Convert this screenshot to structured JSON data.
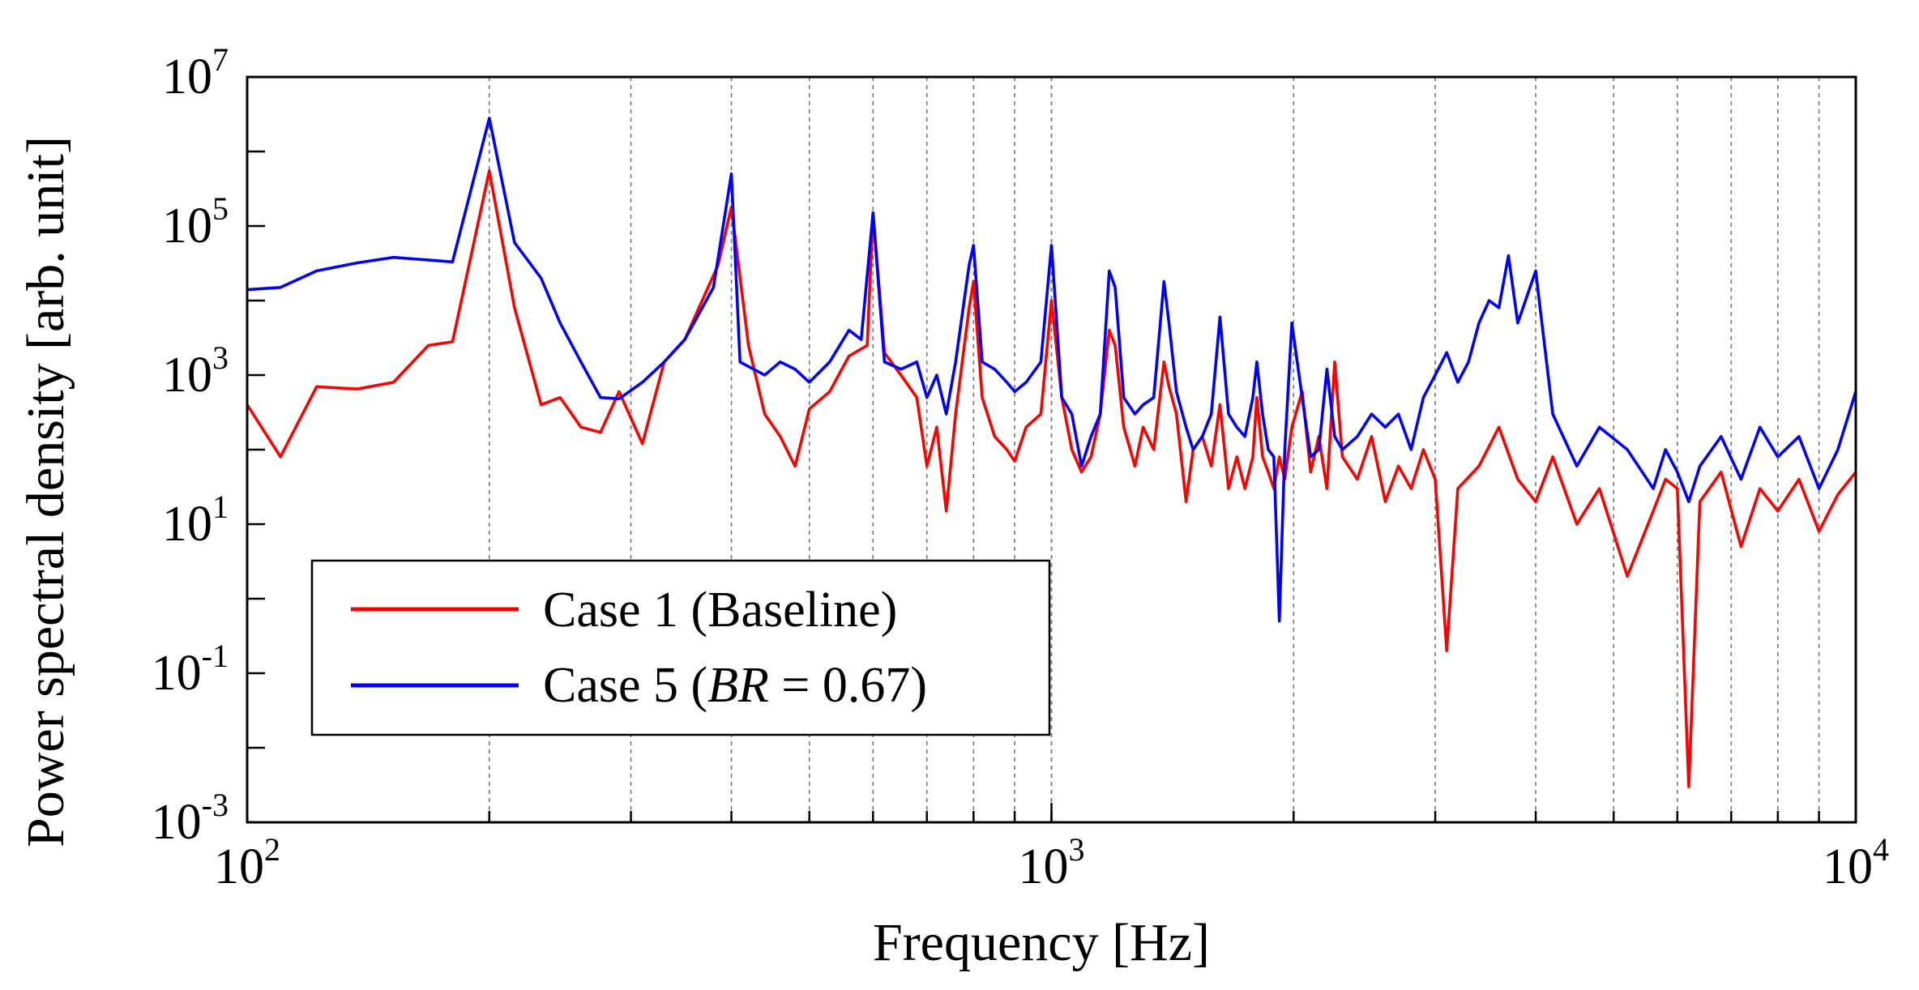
{
  "chart_data": {
    "type": "line",
    "title": "",
    "xlabel": "Frequency [Hz]",
    "ylabel": "Power spectral density [arb. unit]",
    "xscale": "log",
    "yscale": "log",
    "xlim": [
      100,
      10000
    ],
    "ylim": [
      0.001,
      10000000
    ],
    "grid": "vertical dashed minor+major",
    "legend_position": "lower-left",
    "x_ticks": [
      {
        "value": 100,
        "base": "10",
        "exp": "2"
      },
      {
        "value": 1000,
        "base": "10",
        "exp": "3"
      },
      {
        "value": 10000,
        "base": "10",
        "exp": "4"
      }
    ],
    "y_ticks": [
      {
        "value": 0.001,
        "base": "10",
        "exp": "-3"
      },
      {
        "value": 0.1,
        "base": "10",
        "exp": "-1"
      },
      {
        "value": 10,
        "base": "10",
        "exp": "1"
      },
      {
        "value": 1000,
        "base": "10",
        "exp": "3"
      },
      {
        "value": 100000,
        "base": "10",
        "exp": "5"
      },
      {
        "value": 10000000,
        "base": "10",
        "exp": "7"
      }
    ],
    "series": [
      {
        "name": "Case 1 (Baseline)",
        "legend_prefix": "Case 1 (Baseline)",
        "legend_italic": "",
        "legend_suffix": "",
        "color": "#ff0000",
        "points": [
          [
            100,
            400
          ],
          [
            110,
            80
          ],
          [
            122,
            700
          ],
          [
            137,
            650
          ],
          [
            152,
            800
          ],
          [
            168,
            2500
          ],
          [
            180,
            2800
          ],
          [
            200,
            550000
          ],
          [
            215,
            8000
          ],
          [
            232,
            400
          ],
          [
            245,
            500
          ],
          [
            260,
            200
          ],
          [
            275,
            170
          ],
          [
            290,
            600
          ],
          [
            310,
            120
          ],
          [
            330,
            1500
          ],
          [
            350,
            3000
          ],
          [
            385,
            30000
          ],
          [
            400,
            180000
          ],
          [
            420,
            2500
          ],
          [
            440,
            300
          ],
          [
            460,
            150
          ],
          [
            480,
            60
          ],
          [
            500,
            350
          ],
          [
            530,
            600
          ],
          [
            560,
            1800
          ],
          [
            590,
            2500
          ],
          [
            600,
            150000
          ],
          [
            620,
            2000
          ],
          [
            650,
            1000
          ],
          [
            680,
            500
          ],
          [
            700,
            60
          ],
          [
            720,
            200
          ],
          [
            740,
            15
          ],
          [
            760,
            300
          ],
          [
            790,
            8000
          ],
          [
            800,
            18000
          ],
          [
            820,
            500
          ],
          [
            850,
            150
          ],
          [
            880,
            100
          ],
          [
            900,
            70
          ],
          [
            930,
            200
          ],
          [
            970,
            300
          ],
          [
            1000,
            10000
          ],
          [
            1030,
            500
          ],
          [
            1060,
            100
          ],
          [
            1090,
            50
          ],
          [
            1120,
            80
          ],
          [
            1150,
            300
          ],
          [
            1180,
            4000
          ],
          [
            1200,
            2500
          ],
          [
            1230,
            200
          ],
          [
            1270,
            60
          ],
          [
            1300,
            200
          ],
          [
            1340,
            100
          ],
          [
            1380,
            1500
          ],
          [
            1400,
            700
          ],
          [
            1430,
            300
          ],
          [
            1470,
            20
          ],
          [
            1500,
            100
          ],
          [
            1540,
            150
          ],
          [
            1580,
            60
          ],
          [
            1620,
            400
          ],
          [
            1660,
            30
          ],
          [
            1700,
            80
          ],
          [
            1740,
            30
          ],
          [
            1780,
            80
          ],
          [
            1800,
            500
          ],
          [
            1830,
            80
          ],
          [
            1860,
            50
          ],
          [
            1890,
            30
          ],
          [
            1920,
            80
          ],
          [
            1950,
            40
          ],
          [
            1990,
            200
          ],
          [
            2050,
            600
          ],
          [
            2100,
            50
          ],
          [
            2150,
            150
          ],
          [
            2200,
            30
          ],
          [
            2250,
            1500
          ],
          [
            2300,
            80
          ],
          [
            2400,
            40
          ],
          [
            2500,
            150
          ],
          [
            2600,
            20
          ],
          [
            2700,
            60
          ],
          [
            2800,
            30
          ],
          [
            2900,
            100
          ],
          [
            3000,
            40
          ],
          [
            3100,
            0.2
          ],
          [
            3200,
            30
          ],
          [
            3400,
            60
          ],
          [
            3600,
            200
          ],
          [
            3800,
            40
          ],
          [
            4000,
            20
          ],
          [
            4200,
            80
          ],
          [
            4500,
            10
          ],
          [
            4800,
            30
          ],
          [
            5200,
            2
          ],
          [
            5600,
            15
          ],
          [
            5800,
            40
          ],
          [
            6000,
            30
          ],
          [
            6200,
            0.003
          ],
          [
            6400,
            20
          ],
          [
            6800,
            50
          ],
          [
            7200,
            5
          ],
          [
            7600,
            30
          ],
          [
            8000,
            15
          ],
          [
            8500,
            40
          ],
          [
            9000,
            8
          ],
          [
            9500,
            25
          ],
          [
            10000,
            50
          ]
        ]
      },
      {
        "name": "Case 5 (BR = 0.67)",
        "legend_prefix": "Case 5 (",
        "legend_italic": "BR",
        "legend_suffix": " = 0.67)",
        "color": "#0000ff",
        "points": [
          [
            100,
            14000
          ],
          [
            110,
            15000
          ],
          [
            122,
            25000
          ],
          [
            137,
            32000
          ],
          [
            152,
            38000
          ],
          [
            168,
            35000
          ],
          [
            180,
            33000
          ],
          [
            200,
            2800000
          ],
          [
            215,
            60000
          ],
          [
            232,
            20000
          ],
          [
            245,
            5000
          ],
          [
            260,
            1500
          ],
          [
            275,
            500
          ],
          [
            290,
            480
          ],
          [
            310,
            800
          ],
          [
            330,
            1500
          ],
          [
            350,
            3000
          ],
          [
            380,
            15000
          ],
          [
            400,
            500000
          ],
          [
            410,
            1500
          ],
          [
            440,
            1000
          ],
          [
            460,
            1500
          ],
          [
            480,
            1200
          ],
          [
            500,
            800
          ],
          [
            530,
            1500
          ],
          [
            560,
            4000
          ],
          [
            580,
            3000
          ],
          [
            600,
            150000
          ],
          [
            620,
            1500
          ],
          [
            650,
            1200
          ],
          [
            680,
            1500
          ],
          [
            700,
            500
          ],
          [
            720,
            1000
          ],
          [
            740,
            300
          ],
          [
            760,
            1500
          ],
          [
            790,
            30000
          ],
          [
            800,
            55000
          ],
          [
            820,
            1500
          ],
          [
            850,
            1200
          ],
          [
            880,
            800
          ],
          [
            900,
            600
          ],
          [
            930,
            800
          ],
          [
            970,
            1500
          ],
          [
            1000,
            55000
          ],
          [
            1030,
            500
          ],
          [
            1060,
            300
          ],
          [
            1090,
            60
          ],
          [
            1120,
            150
          ],
          [
            1150,
            300
          ],
          [
            1180,
            25000
          ],
          [
            1200,
            15000
          ],
          [
            1230,
            500
          ],
          [
            1270,
            300
          ],
          [
            1300,
            400
          ],
          [
            1340,
            500
          ],
          [
            1380,
            18000
          ],
          [
            1400,
            5000
          ],
          [
            1430,
            600
          ],
          [
            1470,
            200
          ],
          [
            1500,
            100
          ],
          [
            1540,
            150
          ],
          [
            1580,
            300
          ],
          [
            1620,
            6000
          ],
          [
            1660,
            300
          ],
          [
            1700,
            200
          ],
          [
            1740,
            150
          ],
          [
            1780,
            500
          ],
          [
            1800,
            1500
          ],
          [
            1830,
            300
          ],
          [
            1860,
            100
          ],
          [
            1890,
            80
          ],
          [
            1920,
            0.5
          ],
          [
            1950,
            100
          ],
          [
            1990,
            5000
          ],
          [
            2050,
            500
          ],
          [
            2100,
            80
          ],
          [
            2150,
            100
          ],
          [
            2200,
            1200
          ],
          [
            2250,
            150
          ],
          [
            2300,
            100
          ],
          [
            2400,
            150
          ],
          [
            2500,
            300
          ],
          [
            2600,
            200
          ],
          [
            2700,
            300
          ],
          [
            2800,
            100
          ],
          [
            2900,
            500
          ],
          [
            3000,
            1000
          ],
          [
            3100,
            2000
          ],
          [
            3200,
            800
          ],
          [
            3300,
            1500
          ],
          [
            3400,
            5000
          ],
          [
            3500,
            10000
          ],
          [
            3600,
            8000
          ],
          [
            3700,
            40000
          ],
          [
            3800,
            5000
          ],
          [
            4000,
            25000
          ],
          [
            4200,
            300
          ],
          [
            4500,
            60
          ],
          [
            4800,
            200
          ],
          [
            5200,
            100
          ],
          [
            5600,
            30
          ],
          [
            5800,
            100
          ],
          [
            6000,
            50
          ],
          [
            6200,
            20
          ],
          [
            6400,
            60
          ],
          [
            6800,
            150
          ],
          [
            7200,
            40
          ],
          [
            7600,
            200
          ],
          [
            8000,
            80
          ],
          [
            8500,
            150
          ],
          [
            9000,
            30
          ],
          [
            9500,
            100
          ],
          [
            10000,
            600
          ]
        ]
      }
    ]
  }
}
